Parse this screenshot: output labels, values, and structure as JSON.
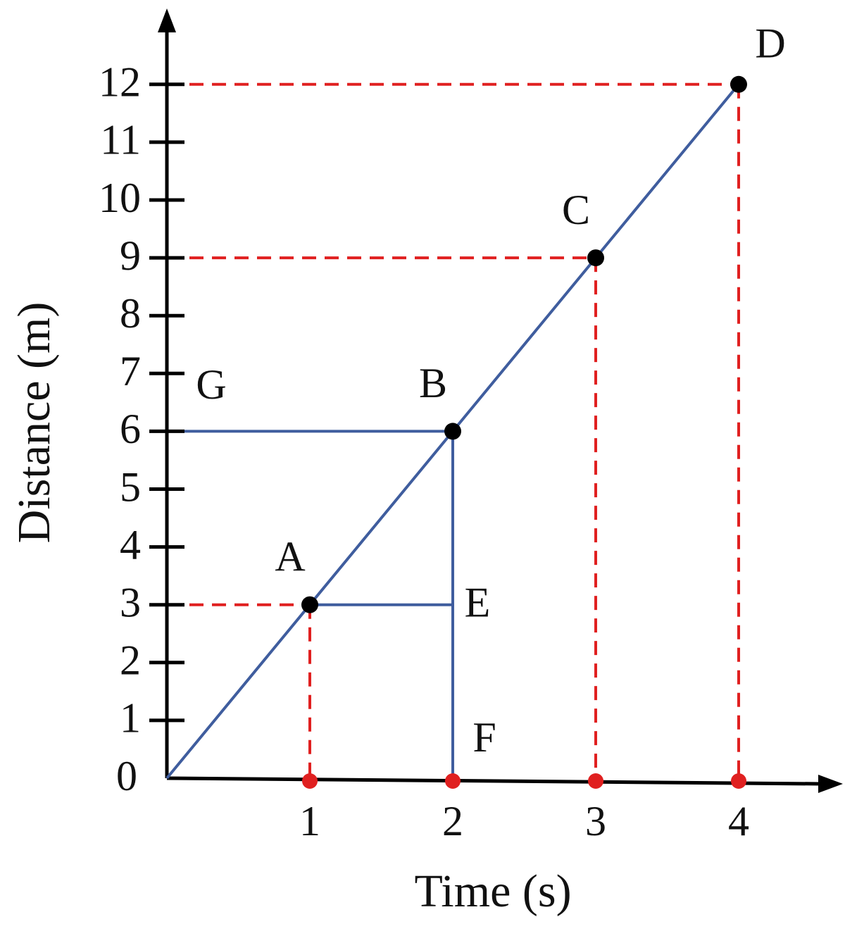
{
  "chart_data": {
    "type": "line",
    "x_label": "Time (s)",
    "y_label": "Distance (m)",
    "x": [
      0,
      1,
      2,
      3,
      4
    ],
    "values": [
      0,
      3,
      6,
      9,
      12
    ],
    "color": "#3f5d9e",
    "point_labels": [
      null,
      "A",
      "B",
      "C",
      "D"
    ],
    "xlim": [
      0,
      4.7
    ],
    "ylim": [
      0,
      13.2
    ],
    "xticks": [
      1,
      2,
      3,
      4
    ],
    "yticks": [
      0,
      1,
      2,
      3,
      4,
      5,
      6,
      7,
      8,
      9,
      10,
      11,
      12
    ],
    "annotations": [
      {
        "text": "G",
        "x": 0,
        "y": 6
      },
      {
        "text": "E",
        "x": 2,
        "y": 3
      },
      {
        "text": "F",
        "x": 2,
        "y": 0
      }
    ],
    "guide_lines": [
      {
        "x": [
          0,
          2
        ],
        "y": [
          6,
          6
        ],
        "color": "#3f5d9e",
        "dashed": false
      },
      {
        "x": [
          2,
          2
        ],
        "y": [
          6,
          0
        ],
        "color": "#3f5d9e",
        "dashed": false
      },
      {
        "x": [
          1,
          2
        ],
        "y": [
          3,
          3
        ],
        "color": "#3f5d9e",
        "dashed": false
      },
      {
        "x": [
          0,
          1
        ],
        "y": [
          3,
          3
        ],
        "color": "#e02020",
        "dashed": true
      },
      {
        "x": [
          1,
          1
        ],
        "y": [
          3,
          0
        ],
        "color": "#e02020",
        "dashed": true
      },
      {
        "x": [
          0,
          3
        ],
        "y": [
          9,
          9
        ],
        "color": "#e02020",
        "dashed": true
      },
      {
        "x": [
          3,
          3
        ],
        "y": [
          9,
          0
        ],
        "color": "#e02020",
        "dashed": true
      },
      {
        "x": [
          0,
          4
        ],
        "y": [
          12,
          12
        ],
        "color": "#e02020",
        "dashed": true
      },
      {
        "x": [
          4,
          4
        ],
        "y": [
          12,
          0
        ],
        "color": "#e02020",
        "dashed": true
      }
    ],
    "tick_dot_color": "#e02020"
  }
}
